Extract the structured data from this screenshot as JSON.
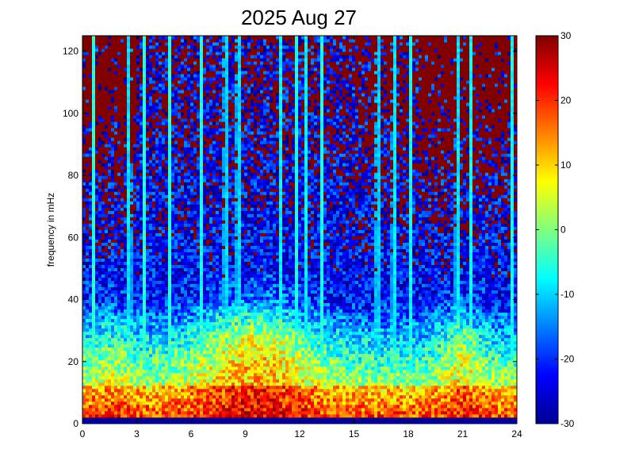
{
  "chart_data": {
    "type": "heatmap",
    "title": "2025 Aug 27",
    "xlabel": "",
    "ylabel": "frequency in mHz",
    "xlim": [
      0,
      24
    ],
    "ylim": [
      0,
      125
    ],
    "x_ticks": [
      "0",
      "3",
      "6",
      "9",
      "12",
      "15",
      "18",
      "21",
      "24"
    ],
    "y_ticks": [
      "0",
      "20",
      "40",
      "60",
      "80",
      "100",
      "120"
    ],
    "colorbar": {
      "range": [
        -30,
        30
      ],
      "ticks": [
        "30",
        "20",
        "10",
        "0",
        "-10",
        "-20",
        "-30"
      ],
      "colormap": "jet"
    },
    "grid": false,
    "description_of_values": {
      "low_frequency_band_0_to_10_mHz": "approximately 5 to 20 (yellow-red)",
      "band_10_to_45_mHz_hours_6_to_14": "approximately -5 to 10 (cyan-yellow)",
      "high_frequency_above_60_mHz": "approximately -25 to 30 mixed (blue with dark red speckle)",
      "vertical_streaks_hours": [
        0.6,
        2.6,
        3.4,
        4.8,
        6.6,
        7.9,
        8.6,
        10.9,
        11.8,
        12.4,
        13.2,
        16.3,
        17.2,
        18.1,
        20.7,
        21.5,
        23.7
      ]
    }
  }
}
